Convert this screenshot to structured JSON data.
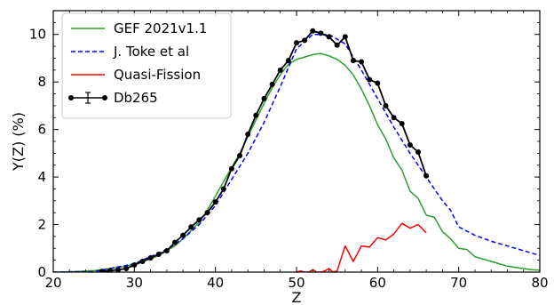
{
  "chart_data": {
    "type": "line",
    "title": "",
    "xlabel": "Z",
    "ylabel": "Y(Z) (%)",
    "xlim": [
      20,
      80
    ],
    "ylim": [
      0,
      11
    ],
    "xticks": [
      20,
      30,
      40,
      50,
      60,
      70,
      80
    ],
    "yticks": [
      0,
      2,
      4,
      6,
      8,
      10
    ],
    "grid": false,
    "legend_position": "top-left",
    "series": [
      {
        "name": "GEF 2021v1.1",
        "color": "#2ca02c",
        "style": "solid",
        "x": [
          20,
          21,
          22,
          23,
          24,
          25,
          26,
          27,
          28,
          29,
          30,
          31,
          32,
          33,
          34,
          35,
          36,
          37,
          38,
          39,
          40,
          41,
          42,
          43,
          44,
          45,
          46,
          47,
          48,
          49,
          50,
          51,
          52,
          53,
          54,
          55,
          56,
          57,
          58,
          59,
          60,
          61,
          62,
          63,
          64,
          65,
          66,
          67,
          68,
          69,
          70,
          71,
          72,
          73,
          74,
          75,
          76,
          77,
          78,
          79,
          80
        ],
        "y": [
          0.0,
          0.0,
          0.02,
          0.03,
          0.05,
          0.06,
          0.1,
          0.15,
          0.2,
          0.25,
          0.35,
          0.45,
          0.55,
          0.7,
          0.9,
          1.1,
          1.4,
          1.75,
          2.1,
          2.6,
          3.2,
          3.8,
          4.4,
          5.0,
          5.7,
          6.4,
          7.1,
          7.75,
          8.3,
          8.75,
          8.95,
          9.05,
          9.15,
          9.2,
          9.1,
          8.95,
          8.7,
          8.3,
          7.7,
          7.0,
          6.2,
          5.6,
          4.8,
          4.3,
          3.4,
          3.1,
          2.4,
          2.3,
          1.7,
          1.4,
          1.0,
          0.95,
          0.65,
          0.55,
          0.45,
          0.35,
          0.25,
          0.2,
          0.15,
          0.1,
          0.08
        ]
      },
      {
        "name": "J. Toke et al",
        "color": "#0000ff",
        "style": "dashed",
        "x": [
          20,
          25,
          30,
          32,
          34,
          36,
          38,
          40,
          42,
          44,
          46,
          48,
          50,
          52,
          54,
          56,
          58,
          60,
          62,
          64,
          66,
          68,
          69,
          70,
          72,
          74,
          76,
          78,
          80
        ],
        "y": [
          0.0,
          0.02,
          0.35,
          0.65,
          0.95,
          1.4,
          2.0,
          2.8,
          3.9,
          5.0,
          6.3,
          7.8,
          9.4,
          10.0,
          10.0,
          9.6,
          8.5,
          7.3,
          6.1,
          5.0,
          4.0,
          3.0,
          2.6,
          1.9,
          1.55,
          1.3,
          1.1,
          0.9,
          0.7
        ]
      },
      {
        "name": "Quasi-Fission",
        "color": "#ff0000",
        "style": "solid",
        "x": [
          50,
          50.5,
          51,
          51.5,
          52,
          52.5,
          53,
          53.5,
          54,
          54.5,
          55,
          56,
          57,
          58,
          59,
          60,
          61,
          62,
          63,
          64,
          65,
          66
        ],
        "y": [
          0.0,
          0.05,
          0.0,
          0.0,
          0.1,
          0.0,
          0.0,
          0.05,
          0.15,
          0.0,
          0.05,
          1.1,
          0.45,
          1.1,
          1.05,
          1.45,
          1.35,
          1.6,
          2.05,
          1.85,
          2.0,
          1.65
        ]
      },
      {
        "name": "Db265",
        "color": "#000000",
        "style": "solid-markers",
        "x": [
          26,
          27,
          28,
          29,
          30,
          31,
          32,
          33,
          34,
          35,
          36,
          37,
          38,
          39,
          40,
          41,
          42,
          43,
          44,
          45,
          46,
          47,
          48,
          49,
          50,
          51,
          52,
          53,
          54,
          55,
          56,
          57,
          58,
          59,
          60,
          61,
          62,
          63,
          64,
          65,
          66
        ],
        "y": [
          0.03,
          0.06,
          0.1,
          0.15,
          0.3,
          0.45,
          0.6,
          0.75,
          0.9,
          1.25,
          1.55,
          1.9,
          2.2,
          2.5,
          2.95,
          3.5,
          4.35,
          4.9,
          5.8,
          6.6,
          7.3,
          7.9,
          8.5,
          8.9,
          9.65,
          9.75,
          10.15,
          10.05,
          9.9,
          9.55,
          9.9,
          8.9,
          8.85,
          8.1,
          7.95,
          7.0,
          6.5,
          6.25,
          5.35,
          5.05,
          4.05
        ]
      }
    ]
  }
}
